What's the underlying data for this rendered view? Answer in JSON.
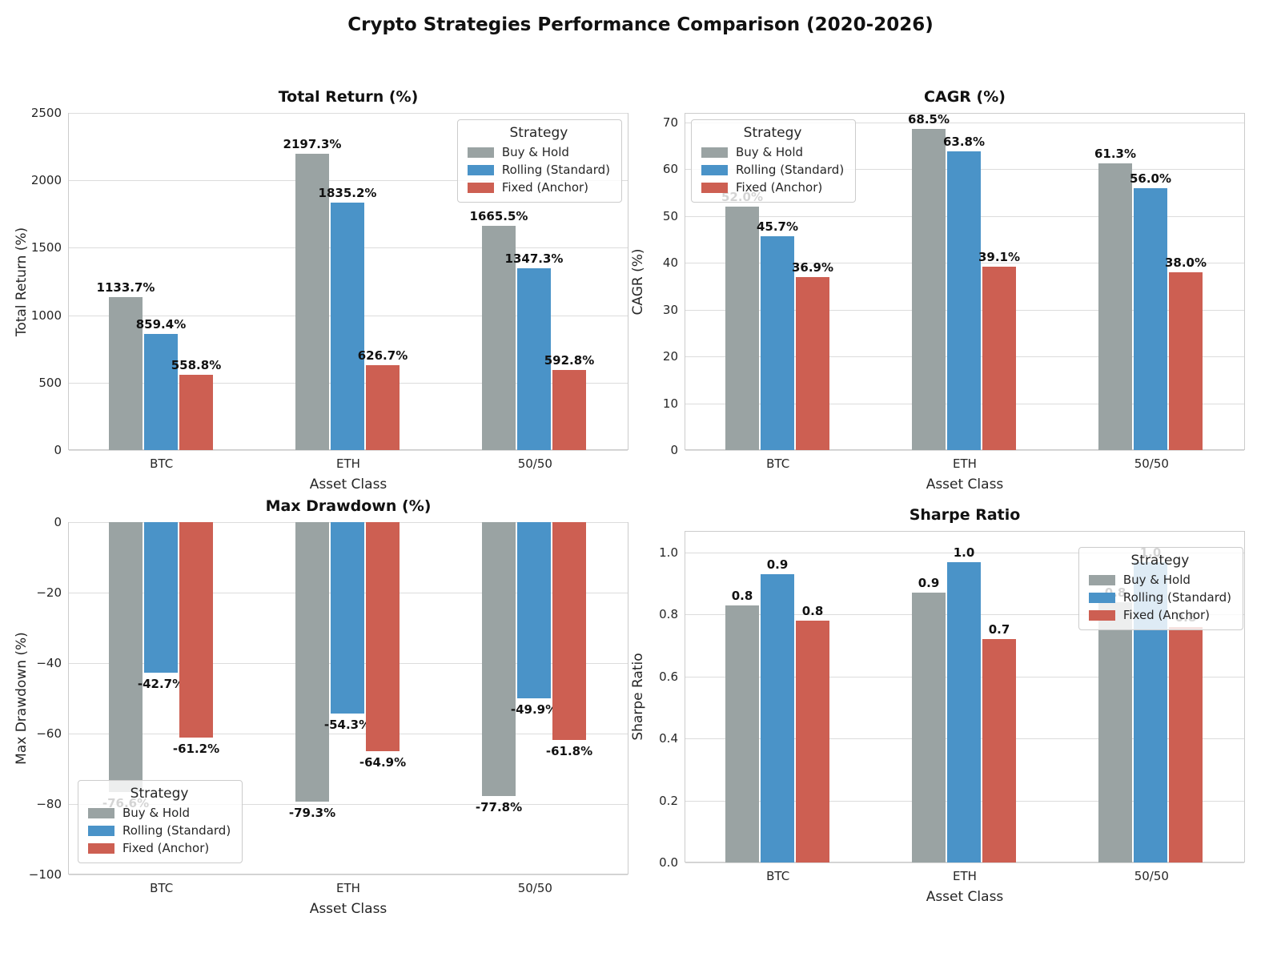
{
  "figure_title": "Crypto Strategies Performance Comparison (2020-2026)",
  "colors": {
    "buy_hold": "#9aa3a3",
    "rolling": "#4a93c8",
    "fixed": "#cd5f52",
    "grid": "#dcdcdc",
    "spine": "#cccccc"
  },
  "legend": {
    "title": "Strategy",
    "entries": [
      {
        "label": "Buy & Hold",
        "color": "#9aa3a3"
      },
      {
        "label": "Rolling (Standard)",
        "color": "#4a93c8"
      },
      {
        "label": "Fixed (Anchor)",
        "color": "#cd5f52"
      }
    ]
  },
  "chart_data": [
    {
      "type": "bar",
      "title": "Total Return (%)",
      "xlabel": "Asset Class",
      "ylabel": "Total Return (%)",
      "categories": [
        "BTC",
        "ETH",
        "50/50"
      ],
      "series": [
        {
          "name": "Buy & Hold",
          "values": [
            1133.7,
            2197.3,
            1665.5
          ],
          "labels": [
            "1133.7%",
            "2197.3%",
            "1665.5%"
          ]
        },
        {
          "name": "Rolling (Standard)",
          "values": [
            859.4,
            1835.2,
            1347.3
          ],
          "labels": [
            "859.4%",
            "1835.2%",
            "1347.3%"
          ]
        },
        {
          "name": "Fixed (Anchor)",
          "values": [
            558.8,
            626.7,
            592.8
          ],
          "labels": [
            "558.8%",
            "626.7%",
            "592.8%"
          ]
        }
      ],
      "ylim": [
        0,
        2500
      ],
      "yticks": [
        {
          "v": 0,
          "t": "0"
        },
        {
          "v": 500,
          "t": "500"
        },
        {
          "v": 1000,
          "t": "1000"
        },
        {
          "v": 1500,
          "t": "1500"
        },
        {
          "v": 2000,
          "t": "2000"
        },
        {
          "v": 2500,
          "t": "2500"
        }
      ],
      "grid": true,
      "legend_position": "top-right"
    },
    {
      "type": "bar",
      "title": "CAGR (%)",
      "xlabel": "Asset Class",
      "ylabel": "CAGR (%)",
      "categories": [
        "BTC",
        "ETH",
        "50/50"
      ],
      "series": [
        {
          "name": "Buy & Hold",
          "values": [
            52.0,
            68.5,
            61.3
          ],
          "labels": [
            "52.0%",
            "68.5%",
            "61.3%"
          ]
        },
        {
          "name": "Rolling (Standard)",
          "values": [
            45.7,
            63.8,
            56.0
          ],
          "labels": [
            "45.7%",
            "63.8%",
            "56.0%"
          ]
        },
        {
          "name": "Fixed (Anchor)",
          "values": [
            36.9,
            39.1,
            38.0
          ],
          "labels": [
            "36.9%",
            "39.1%",
            "38.0%"
          ]
        }
      ],
      "ylim": [
        0,
        72
      ],
      "yticks": [
        {
          "v": 0,
          "t": "0"
        },
        {
          "v": 10,
          "t": "10"
        },
        {
          "v": 20,
          "t": "20"
        },
        {
          "v": 30,
          "t": "30"
        },
        {
          "v": 40,
          "t": "40"
        },
        {
          "v": 50,
          "t": "50"
        },
        {
          "v": 60,
          "t": "60"
        },
        {
          "v": 70,
          "t": "70"
        }
      ],
      "grid": true,
      "legend_position": "top-left"
    },
    {
      "type": "bar",
      "title": "Max Drawdown (%)",
      "xlabel": "Asset Class",
      "ylabel": "Max Drawdown (%)",
      "categories": [
        "BTC",
        "ETH",
        "50/50"
      ],
      "series": [
        {
          "name": "Buy & Hold",
          "values": [
            -76.6,
            -79.3,
            -77.8
          ],
          "labels": [
            "-76.6%",
            "-79.3%",
            "-77.8%"
          ]
        },
        {
          "name": "Rolling (Standard)",
          "values": [
            -42.7,
            -54.3,
            -49.9
          ],
          "labels": [
            "-42.7%",
            "-54.3%",
            "-49.9%"
          ]
        },
        {
          "name": "Fixed (Anchor)",
          "values": [
            -61.2,
            -64.9,
            -61.8
          ],
          "labels": [
            "-61.2%",
            "-64.9%",
            "-61.8%"
          ]
        }
      ],
      "ylim": [
        -100,
        0
      ],
      "yticks": [
        {
          "v": 0,
          "t": "0"
        },
        {
          "v": -20,
          "t": "−20"
        },
        {
          "v": -40,
          "t": "−40"
        },
        {
          "v": -60,
          "t": "−60"
        },
        {
          "v": -80,
          "t": "−80"
        },
        {
          "v": -100,
          "t": "−100"
        }
      ],
      "grid": true,
      "legend_position": "bottom-left"
    },
    {
      "type": "bar",
      "title": "Sharpe Ratio",
      "xlabel": "Asset Class",
      "ylabel": "Sharpe Ratio",
      "categories": [
        "BTC",
        "ETH",
        "50/50"
      ],
      "series": [
        {
          "name": "Buy & Hold",
          "values": [
            0.83,
            0.87,
            0.84
          ],
          "labels": [
            "0.8",
            "0.9",
            "0.8"
          ]
        },
        {
          "name": "Rolling (Standard)",
          "values": [
            0.93,
            0.97,
            0.97
          ],
          "labels": [
            "0.9",
            "1.0",
            "1.0"
          ]
        },
        {
          "name": "Fixed (Anchor)",
          "values": [
            0.78,
            0.72,
            0.76
          ],
          "labels": [
            "0.8",
            "0.7",
            "0.8"
          ]
        }
      ],
      "ylim": [
        0,
        1.07
      ],
      "yticks": [
        {
          "v": 0.0,
          "t": "0.0"
        },
        {
          "v": 0.2,
          "t": "0.2"
        },
        {
          "v": 0.4,
          "t": "0.4"
        },
        {
          "v": 0.6,
          "t": "0.6"
        },
        {
          "v": 0.8,
          "t": "0.8"
        },
        {
          "v": 1.0,
          "t": "1.0"
        }
      ],
      "grid": true,
      "legend_position": "top-right-low"
    }
  ]
}
